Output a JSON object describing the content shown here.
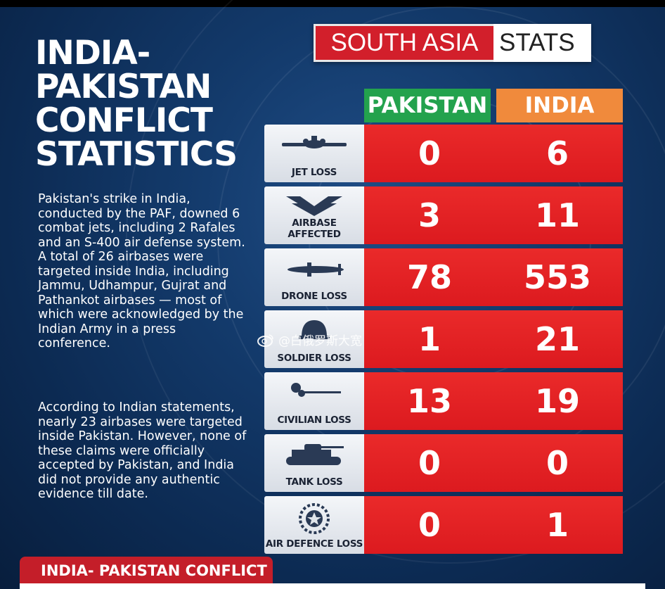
{
  "title": "INDIA-\nPAKISTAN\nCONFLICT\nSTATISTICS",
  "paragraphs": [
    "Pakistan's strike in India, conducted by the PAF, downed 6 combat jets, including 2 Rafales and an S-400 air defense system. A total of 26 airbases were targeted inside India, including Jammu, Udhampur, Gujrat and Pathankot airbases — most of which were acknowledged by the Indian Army in a press conference.",
    "According to Indian statements, nearly 23 airbases were targeted inside Pakistan. However, none of these claims were officially accepted by Pakistan, and India did not provide any authentic evidence till date."
  ],
  "brand": {
    "part1": "SOUTH ASIA",
    "part2": "STATS"
  },
  "columns": {
    "pakistan": "PAKISTAN",
    "india": "INDIA"
  },
  "rows": [
    {
      "label": "JET LOSS",
      "icon": "jet-icon",
      "pakistan": "0",
      "india": "6"
    },
    {
      "label": "AIRBASE AFFECTED",
      "icon": "wings-icon",
      "pakistan": "3",
      "india": "11"
    },
    {
      "label": "DRONE LOSS",
      "icon": "drone-icon",
      "pakistan": "78",
      "india": "553"
    },
    {
      "label": "SOLDIER LOSS",
      "icon": "helmet-icon",
      "pakistan": "1",
      "india": "21"
    },
    {
      "label": "CIVILIAN LOSS",
      "icon": "flower-icon",
      "pakistan": "13",
      "india": "19"
    },
    {
      "label": "TANK LOSS",
      "icon": "tank-icon",
      "pakistan": "0",
      "india": "0"
    },
    {
      "label": "AIR DEFENCE LOSS",
      "icon": "air-defence-emblem-icon",
      "pakistan": "0",
      "india": "1"
    }
  ],
  "watermark": "@白俄罗斯大宽",
  "footer": "INDIA- PAKISTAN CONFLICT",
  "colors": {
    "pakistan": "#23a24d",
    "india": "#f08a3c",
    "value_bg": "#e3222a",
    "brand_red": "#d21f2b"
  }
}
